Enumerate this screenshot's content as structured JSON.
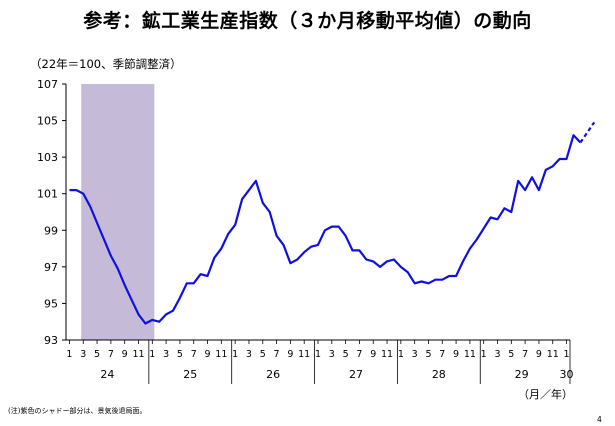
{
  "page": {
    "title": "参考：鉱工業生産指数（３か月移動平均値）の動向",
    "subtitle": "（22年＝100、季節調整済）",
    "note": "(注)紫色のシャドー部分は、景気後退局面。",
    "page_number": "4"
  },
  "chart_data": {
    "type": "line",
    "ylim": [
      93,
      107
    ],
    "yticks": [
      "93",
      "95",
      "97",
      "99",
      "101",
      "103",
      "105",
      "107"
    ],
    "month_ticks": [
      "1",
      "3",
      "5",
      "7",
      "9",
      "11",
      "1",
      "3",
      "5",
      "7",
      "9",
      "11",
      "1",
      "3",
      "5",
      "7",
      "9",
      "11",
      "1",
      "3",
      "5",
      "7",
      "9",
      "11",
      "1",
      "3",
      "5",
      "7",
      "9",
      "11",
      "1",
      "3",
      "5",
      "7",
      "9",
      "11",
      "1"
    ],
    "year_labels": [
      "24",
      "25",
      "26",
      "27",
      "28",
      "29",
      "30"
    ],
    "xlabel": "（月／年）",
    "grid": false,
    "recession_shade": {
      "start_index": 2,
      "end_index": 12,
      "color": "#c5bbd9"
    },
    "series_color": "#1010e0",
    "series": [
      {
        "values": [
          101.2,
          101.2,
          101.0,
          100.3,
          99.4,
          98.5,
          97.6,
          96.9,
          96.0,
          95.2,
          94.4,
          93.9,
          94.1,
          94.0,
          94.4,
          94.6,
          95.3,
          96.1,
          96.1,
          96.6,
          96.5,
          97.5,
          98.0,
          98.8,
          99.3,
          100.7,
          101.2,
          101.7,
          100.5,
          100.0,
          98.7,
          98.2,
          97.2,
          97.4,
          97.8,
          98.1,
          98.2,
          99.0,
          99.2,
          99.2,
          98.7,
          97.9,
          97.9,
          97.4,
          97.3,
          97.0,
          97.3,
          97.4,
          97.0,
          96.7,
          96.1,
          96.2,
          96.1,
          96.3,
          96.3,
          96.5,
          96.5,
          97.3,
          98.0,
          98.5,
          99.1,
          99.7,
          99.6,
          100.2,
          100.0,
          101.7,
          101.2,
          101.9,
          101.2,
          102.3,
          102.5,
          102.9,
          102.9,
          104.2,
          103.8
        ],
        "projection": [
          103.8,
          104.9
        ]
      }
    ]
  }
}
